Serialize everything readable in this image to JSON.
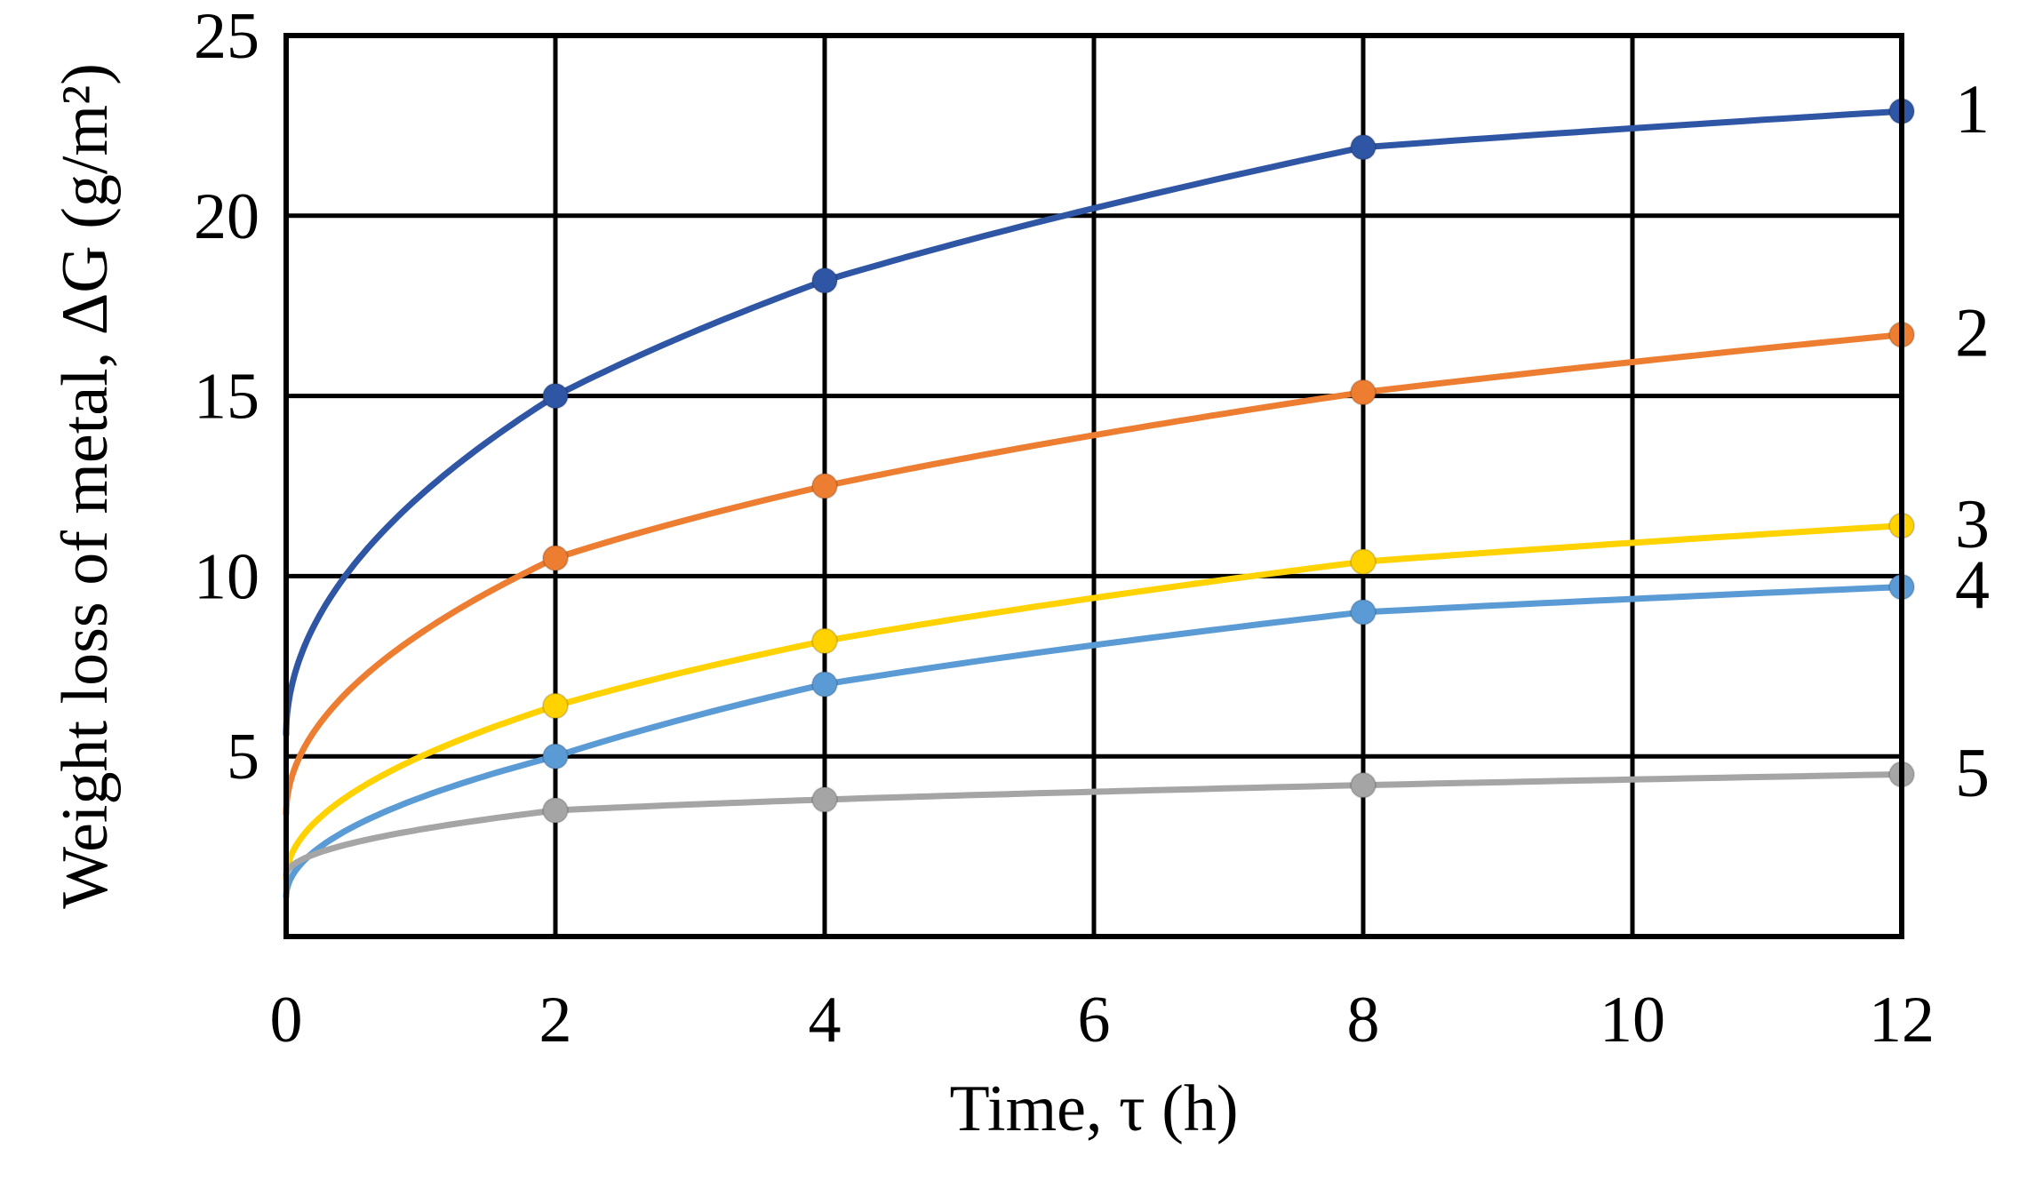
{
  "chart_data": {
    "type": "scatter",
    "title": "",
    "xlabel": "Time, τ (h)",
    "ylabel": "Weight loss of metal, ΔG (g/m²)",
    "xlim": [
      0,
      12
    ],
    "ylim": [
      0,
      25
    ],
    "x_ticks": [
      "0",
      "2",
      "4",
      "6",
      "8",
      "10",
      "12"
    ],
    "y_ticks": [
      "5",
      "10",
      "15",
      "20",
      "25"
    ],
    "grid": true,
    "legend": "none",
    "series": [
      {
        "label": "1",
        "color": "#2f55a5",
        "x": [
          2,
          4,
          8,
          12
        ],
        "y": [
          15.0,
          18.2,
          21.9,
          22.9
        ],
        "fit_start": 5.6
      },
      {
        "label": "2",
        "color": "#ed7d31",
        "x": [
          2,
          4,
          8,
          12
        ],
        "y": [
          10.5,
          12.5,
          15.1,
          16.7
        ],
        "fit_start": 3.4
      },
      {
        "label": "3",
        "color": "#ffd200",
        "x": [
          2,
          4,
          8,
          12
        ],
        "y": [
          6.4,
          8.2,
          10.4,
          11.4
        ],
        "fit_start": 1.6
      },
      {
        "label": "4",
        "color": "#5b9bd5",
        "x": [
          2,
          4,
          8,
          12
        ],
        "y": [
          5.0,
          7.0,
          9.0,
          9.7
        ],
        "fit_start": 1.1
      },
      {
        "label": "5",
        "color": "#a5a5a5",
        "x": [
          2,
          4,
          8,
          12
        ],
        "y": [
          3.5,
          3.8,
          4.2,
          4.5
        ],
        "fit_start": 1.7
      }
    ]
  }
}
